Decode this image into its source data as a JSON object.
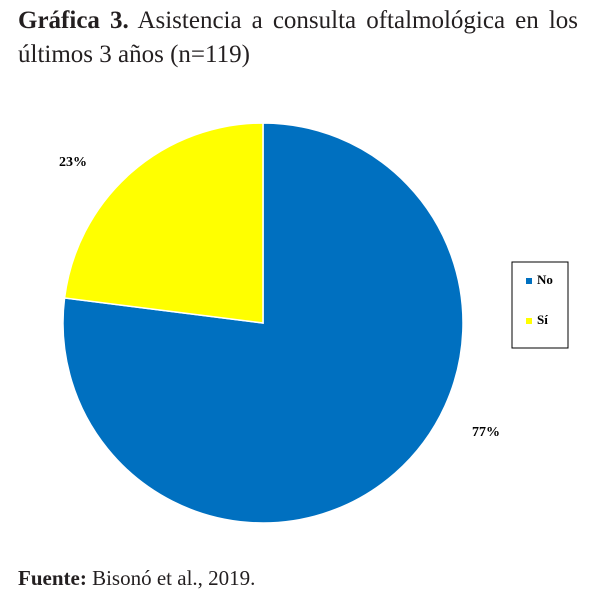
{
  "caption": {
    "lead": "Gráfica 3.",
    "text": "Asistencia a consulta oftalmológica en los últimos 3 años (n=119)"
  },
  "chart_data": {
    "type": "pie",
    "categories": [
      "No",
      "Sí"
    ],
    "values": [
      77,
      23
    ],
    "labels": [
      "77%",
      "23%"
    ],
    "colors": [
      "#0070c0",
      "#ffff00"
    ],
    "legend_placement": "right",
    "legend": [
      "No",
      "Sí"
    ]
  },
  "source": {
    "lead": "Fuente:",
    "text": "Bisonó et al., 2019."
  }
}
